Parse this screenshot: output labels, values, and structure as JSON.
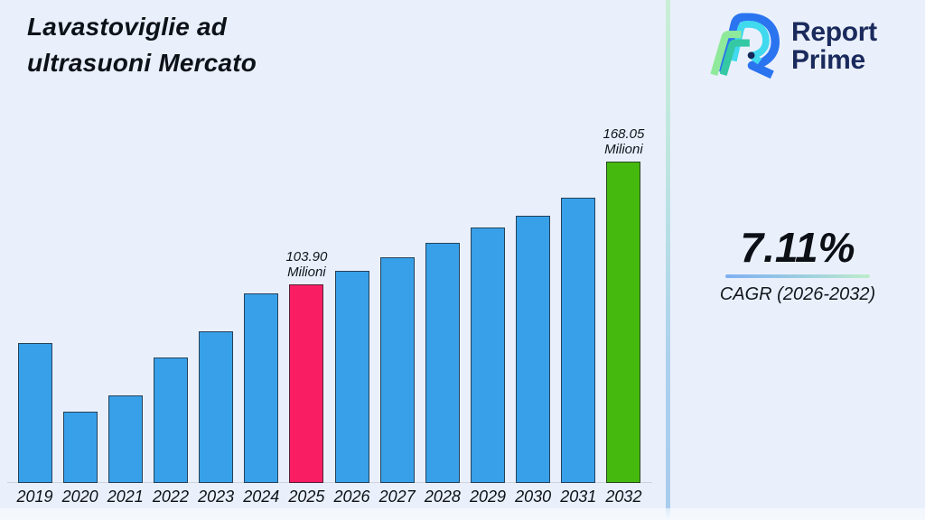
{
  "title": {
    "line1": "Lavastoviglie ad",
    "line2": "ultrasuoni Mercato"
  },
  "logo": {
    "line1": "Report",
    "line2": "Prime"
  },
  "stat": {
    "value": "7.11%",
    "label": "CAGR (2026-2032)"
  },
  "colors": {
    "background": "#eaf0fb",
    "bar_default": "#38a0e8",
    "bar_highlight_2025": "#f91e63",
    "bar_highlight_2032": "#46b90e",
    "divider_top": "#c9efd5",
    "divider_bottom": "#a8cbee",
    "logo_navy": "#1a2a5c",
    "underline_left": "#7fb0f2",
    "underline_right": "#bfecca"
  },
  "chart_data": {
    "type": "bar",
    "title": "Lavastoviglie ad ultrasuoni Mercato",
    "unit": "Milioni",
    "xlabel": "",
    "ylabel": "",
    "ylim": [
      0,
      180
    ],
    "grid": false,
    "categories": [
      "2019",
      "2020",
      "2021",
      "2022",
      "2023",
      "2024",
      "2025",
      "2026",
      "2027",
      "2028",
      "2029",
      "2030",
      "2031",
      "2032"
    ],
    "values": [
      73.0,
      37.5,
      46.0,
      65.5,
      79.5,
      99.2,
      103.9,
      110.9,
      118.0,
      125.4,
      133.4,
      139.9,
      149.3,
      168.05
    ],
    "labeled_points": [
      {
        "index": 6,
        "category": "2025",
        "value": 103.9,
        "label_line1": "103.90",
        "label_line2": "Milioni",
        "color": "#f91e63"
      },
      {
        "index": 13,
        "category": "2032",
        "value": 168.05,
        "label_line1": "168.05",
        "label_line2": "Milioni",
        "color": "#46b90e"
      }
    ],
    "cagr": {
      "value_pct": 7.11,
      "period": "2026-2032"
    }
  }
}
